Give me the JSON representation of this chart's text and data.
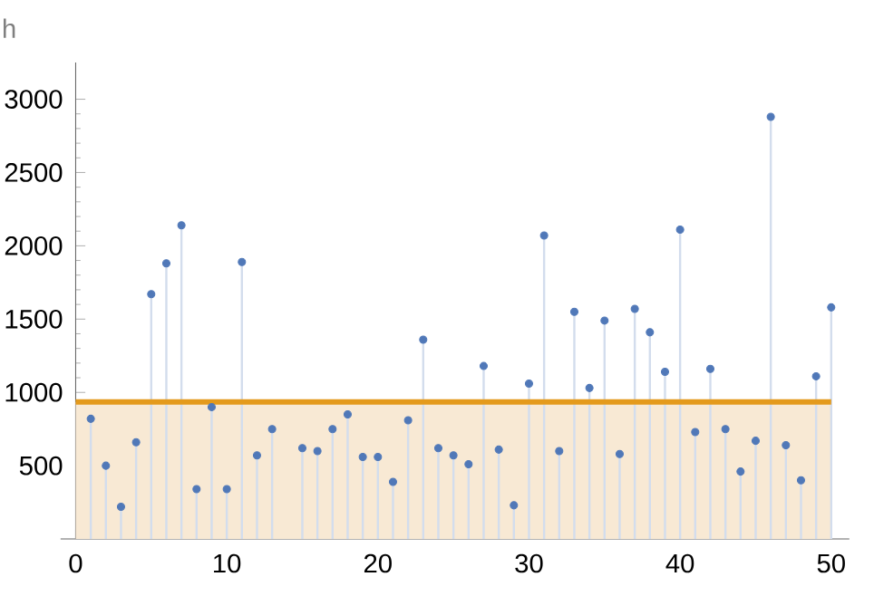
{
  "chart_data": {
    "type": "lollipop",
    "ylabel": "h",
    "x": [
      1,
      2,
      3,
      4,
      5,
      6,
      7,
      8,
      9,
      10,
      11,
      12,
      13,
      14,
      15,
      16,
      17,
      18,
      19,
      20,
      21,
      22,
      23,
      24,
      25,
      26,
      27,
      28,
      29,
      30,
      31,
      32,
      33,
      34,
      35,
      36,
      37,
      38,
      39,
      40,
      41,
      42,
      43,
      44,
      45,
      46,
      47,
      48,
      49,
      50
    ],
    "series": [
      {
        "color": "#5078b8",
        "values": [
          820,
          500,
          220,
          660,
          1670,
          1880,
          2140,
          340,
          900,
          340,
          1890,
          570,
          750,
          null,
          620,
          600,
          750,
          850,
          560,
          560,
          390,
          810,
          1360,
          620,
          570,
          510,
          1180,
          610,
          230,
          1060,
          2070,
          600,
          1550,
          1030,
          1490,
          580,
          1570,
          1410,
          1140,
          2110,
          730,
          1160,
          750,
          460,
          670,
          2880,
          640,
          400,
          1110,
          1580
        ]
      }
    ],
    "xlim": [
      -1,
      51.2
    ],
    "ylim": [
      0,
      3250
    ],
    "xticks": [
      0,
      10,
      20,
      30,
      40,
      50
    ],
    "yticks": [
      500,
      1000,
      1500,
      2000,
      2500,
      3000
    ],
    "ref_lines": [
      {
        "axis": "y",
        "value": 935,
        "color": "#e49a1c"
      }
    ],
    "bands": [
      {
        "axis": "y",
        "from": 0,
        "to": 935,
        "color": "#f8e9d4"
      }
    ],
    "grid": false
  }
}
